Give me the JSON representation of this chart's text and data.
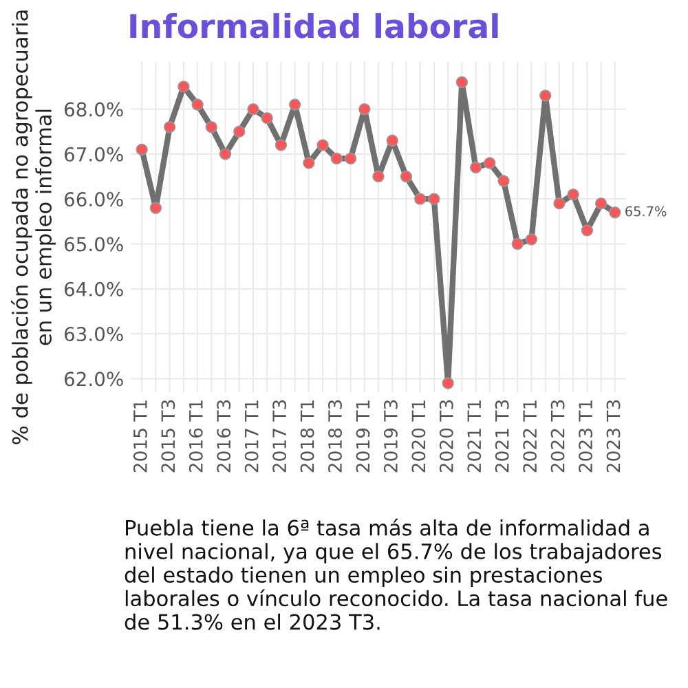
{
  "chart_data": {
    "type": "line",
    "title": "Informalidad laboral",
    "ylabel": "% de población ocupada no agropecuaria\nen un empleo informal",
    "categories": [
      "2015 T1",
      null,
      "2015 T3",
      null,
      "2016 T1",
      null,
      "2016 T3",
      null,
      "2017 T1",
      null,
      "2017 T3",
      null,
      "2018 T1",
      null,
      "2018 T3",
      null,
      "2019 T1",
      null,
      "2019 T3",
      null,
      "2020 T1",
      null,
      "2020 T3",
      null,
      "2021 T1",
      null,
      "2021 T3",
      null,
      "2022 T1",
      null,
      "2022 T3",
      null,
      "2023 T1",
      null,
      "2023 T3"
    ],
    "series": [
      {
        "color": "#707070",
        "values": [
          67.1,
          65.8,
          67.6,
          68.5,
          68.1,
          67.6,
          67.0,
          67.5,
          68.0,
          67.8,
          67.2,
          68.1,
          66.8,
          67.2,
          66.9,
          66.9,
          68.0,
          66.5,
          67.3,
          66.5,
          66.0,
          66.0,
          61.9,
          68.6,
          66.7,
          66.8,
          66.4,
          65.0,
          65.1,
          68.3,
          65.9,
          66.1,
          65.3,
          65.9,
          65.7
        ],
        "value_labels": [
          null,
          null,
          null,
          null,
          null,
          null,
          null,
          null,
          null,
          null,
          null,
          null,
          null,
          null,
          null,
          null,
          null,
          null,
          null,
          null,
          null,
          null,
          null,
          null,
          null,
          null,
          null,
          null,
          null,
          null,
          null,
          null,
          null,
          null,
          "65.7%"
        ]
      }
    ],
    "ylim": [
      61.7,
      69.05
    ],
    "yticks": [
      {
        "value": 62,
        "label": "62.0%"
      },
      {
        "value": 63,
        "label": "63.0%"
      },
      {
        "value": 64,
        "label": "64.0%"
      },
      {
        "value": 65,
        "label": "65.0%"
      },
      {
        "value": 66,
        "label": "66.0%"
      },
      {
        "value": 67,
        "label": "67.0%"
      },
      {
        "value": 68,
        "label": "68.0%"
      }
    ],
    "grid": true,
    "marker": "circle",
    "line_style": "solid",
    "annotations": [
      "Puebla tiene la 6ª tasa más alta de informalidad a nivel nacional, ya que el 65.7% de los trabajadores del estado tienen un empleo sin prestaciones laborales o vínculo reconocido. La tasa nacional fue de 51.3% en el 2023 T3."
    ]
  }
}
